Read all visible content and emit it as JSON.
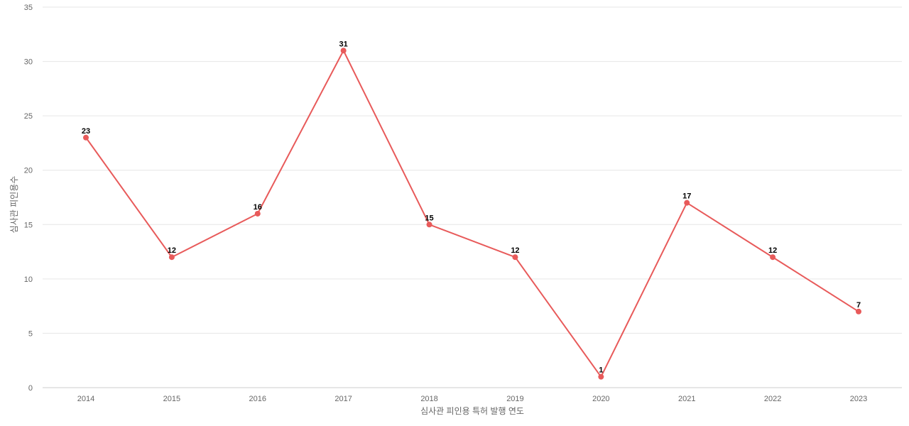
{
  "chart_data": {
    "type": "line",
    "title": "",
    "xlabel": "심사관 피인용 특허 발행 연도",
    "ylabel": "심사관 피인용수",
    "x": [
      "2014",
      "2015",
      "2016",
      "2017",
      "2018",
      "2019",
      "2020",
      "2021",
      "2022",
      "2023"
    ],
    "series": [
      {
        "values": [
          23,
          12,
          16,
          31,
          15,
          12,
          1,
          17,
          12,
          7
        ],
        "color": "#e85a5a"
      }
    ],
    "ylim": [
      0,
      35
    ],
    "yticks": [
      0,
      5,
      10,
      15,
      20,
      25,
      30,
      35
    ],
    "grid": true,
    "legend": "none",
    "data_labels": true
  }
}
